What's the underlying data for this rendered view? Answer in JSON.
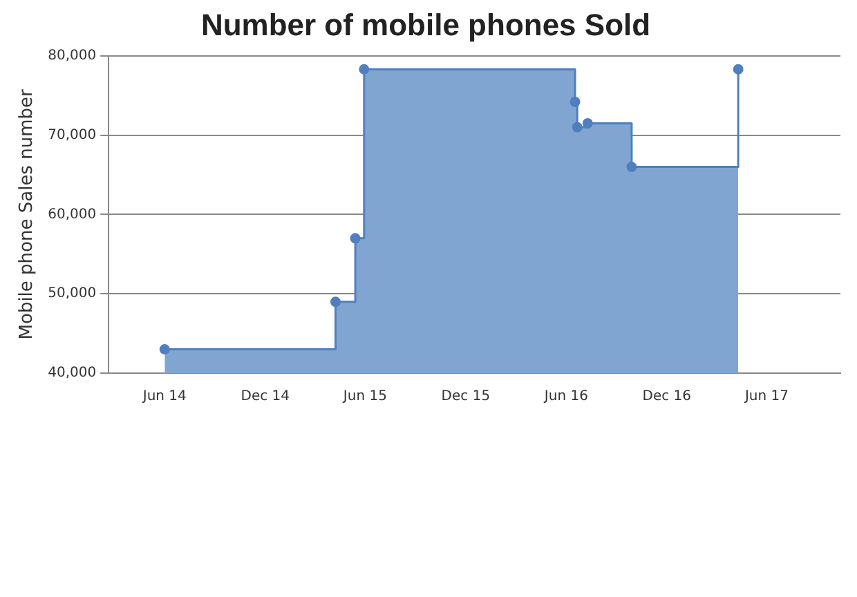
{
  "chart_data": {
    "type": "step",
    "title": "Number of mobile phones Sold",
    "ylabel": "Mobile phone Sales number",
    "x": [
      "2014-06-01",
      "2015-04-08",
      "2015-05-14",
      "2015-05-30",
      "2016-06-17",
      "2016-06-21",
      "2016-07-10",
      "2016-09-28",
      "2017-04-10"
    ],
    "series": [
      {
        "type": "area",
        "marker": "none",
        "color": "#81a5d1",
        "values": [
          43000,
          49000,
          57000,
          78300,
          74200,
          71000,
          71500,
          66000,
          78300
        ]
      },
      {
        "marker": "circle",
        "color": "#4f7fbf",
        "values": [
          43000,
          49000,
          57000,
          78300,
          74200,
          71000,
          71500,
          66000,
          78300
        ]
      }
    ],
    "xlim": [
      "2014-02-19",
      "2017-10-13"
    ],
    "xticks": [
      {
        "value": "2014-06-01",
        "label": "Jun 14"
      },
      {
        "value": "2014-12-01",
        "label": "Dec 14"
      },
      {
        "value": "2015-06-01",
        "label": "Jun 15"
      },
      {
        "value": "2015-12-01",
        "label": "Dec 15"
      },
      {
        "value": "2016-06-01",
        "label": "Jun 16"
      },
      {
        "value": "2016-12-01",
        "label": "Dec 16"
      },
      {
        "value": "2017-06-01",
        "label": "Jun 17"
      }
    ],
    "ylim": [
      40000,
      80000
    ],
    "yticks": [
      {
        "value": 40000,
        "label": "40,000"
      },
      {
        "value": 50000,
        "label": "50,000"
      },
      {
        "value": 60000,
        "label": "60,000"
      },
      {
        "value": 70000,
        "label": "70,000"
      },
      {
        "value": 80000,
        "label": "80,000"
      }
    ],
    "grid": "y",
    "line_style": "solid"
  }
}
